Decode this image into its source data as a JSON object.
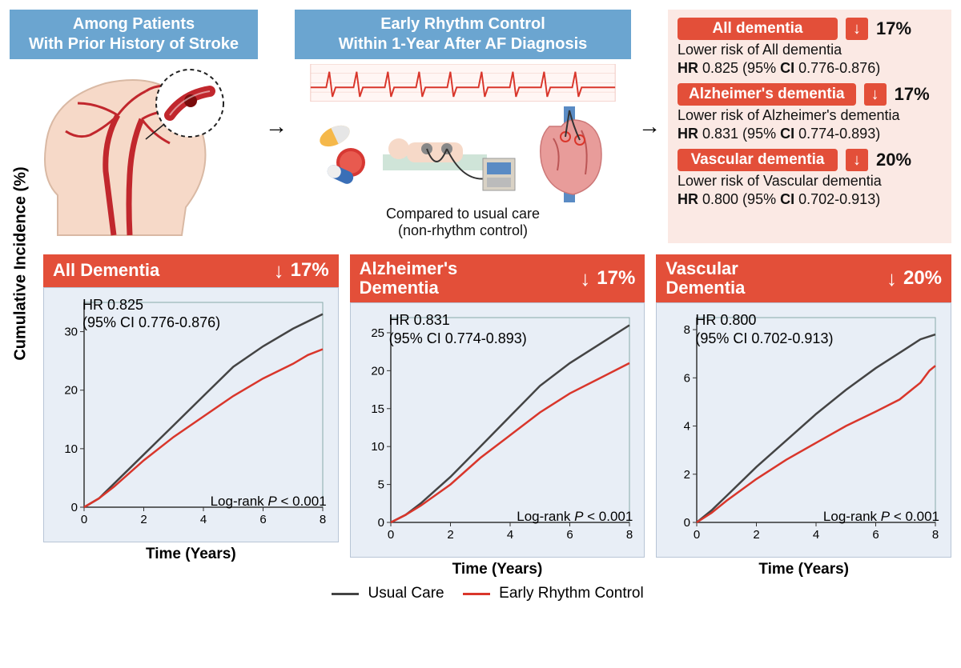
{
  "colors": {
    "blue_header": "#6ba5d0",
    "red": "#e34f39",
    "red_line": "#d9362b",
    "gray_line": "#444444",
    "chart_bg": "#e8eef6",
    "pink_bg": "#fbe9e4",
    "skin": "#f6d9c8",
    "heart": "#e89c9a"
  },
  "panel1": {
    "title_l1": "Among Patients",
    "title_l2": "With Prior History of Stroke"
  },
  "panel2": {
    "title_l1": "Early Rhythm Control",
    "title_l2": "Within 1-Year After AF Diagnosis",
    "caption_l1": "Compared to usual care",
    "caption_l2": "(non-rhythm control)"
  },
  "results": [
    {
      "label": "All dementia",
      "pct": "17%",
      "sub": "Lower risk of All dementia",
      "hr": "HR 0.825 (95% CI 0.776-0.876)",
      "hr_bold1": "HR",
      "hr_val": "0.825 (95%",
      "ci_bold": "CI",
      "ci_val": "0.776-0.876)"
    },
    {
      "label": "Alzheimer's dementia",
      "pct": "17%",
      "sub": "Lower risk of Alzheimer's dementia",
      "hr_bold1": "HR",
      "hr_val": "0.831 (95%",
      "ci_bold": "CI",
      "ci_val": "0.774-0.893)"
    },
    {
      "label": "Vascular dementia",
      "pct": "20%",
      "sub": "Lower risk of Vascular dementia",
      "hr_bold1": "HR",
      "hr_val": "0.800 (95%",
      "ci_bold": "CI",
      "ci_val": "0.702-0.913)"
    }
  ],
  "shared_ylabel": "Cumulative Incidence (%)",
  "shared_xlabel": "Time (Years)",
  "legend": {
    "usual": "Usual Care",
    "early": "Early Rhythm Control"
  },
  "charts": [
    {
      "title": "All Dementia",
      "pct": "17%",
      "hr_l1": "HR 0.825",
      "hr_l2": "(95% CI 0.776-0.876)",
      "logrank": "Log-rank P < 0.001",
      "ymax": 35,
      "yticks": [
        0,
        10,
        20,
        30
      ],
      "xmax": 8,
      "xticks": [
        0,
        2,
        4,
        6,
        8
      ],
      "usual": [
        [
          0,
          0
        ],
        [
          0.5,
          1.5
        ],
        [
          1,
          4
        ],
        [
          2,
          9
        ],
        [
          3,
          14
        ],
        [
          4,
          19
        ],
        [
          5,
          24
        ],
        [
          6,
          27.5
        ],
        [
          7,
          30.5
        ],
        [
          8,
          33
        ]
      ],
      "early": [
        [
          0,
          0
        ],
        [
          0.5,
          1.5
        ],
        [
          1,
          3.5
        ],
        [
          2,
          8
        ],
        [
          3,
          12
        ],
        [
          4,
          15.5
        ],
        [
          5,
          19
        ],
        [
          6,
          22
        ],
        [
          7,
          24.5
        ],
        [
          7.5,
          26
        ],
        [
          8,
          27
        ]
      ]
    },
    {
      "title": "Alzheimer's\nDementia",
      "pct": "17%",
      "hr_l1": "HR 0.831",
      "hr_l2": "(95% CI 0.774-0.893)",
      "logrank": "Log-rank P < 0.001",
      "ymax": 27,
      "yticks": [
        0,
        5,
        10,
        15,
        20,
        25
      ],
      "xmax": 8,
      "xticks": [
        0,
        2,
        4,
        6,
        8
      ],
      "usual": [
        [
          0,
          0
        ],
        [
          0.5,
          1
        ],
        [
          1,
          2.5
        ],
        [
          2,
          6
        ],
        [
          3,
          10
        ],
        [
          4,
          14
        ],
        [
          5,
          18
        ],
        [
          6,
          21
        ],
        [
          7,
          23.5
        ],
        [
          8,
          26
        ]
      ],
      "early": [
        [
          0,
          0
        ],
        [
          0.5,
          1
        ],
        [
          1,
          2.2
        ],
        [
          2,
          5
        ],
        [
          3,
          8.5
        ],
        [
          4,
          11.5
        ],
        [
          5,
          14.5
        ],
        [
          6,
          17
        ],
        [
          7,
          19
        ],
        [
          7.5,
          20
        ],
        [
          8,
          21
        ]
      ]
    },
    {
      "title": "Vascular\nDementia",
      "pct": "20%",
      "hr_l1": "HR 0.800",
      "hr_l2": "(95% CI 0.702-0.913)",
      "logrank": "Log-rank P < 0.001",
      "ymax": 8.5,
      "yticks": [
        0,
        2,
        4,
        6,
        8
      ],
      "xmax": 8,
      "xticks": [
        0,
        2,
        4,
        6,
        8
      ],
      "usual": [
        [
          0,
          0
        ],
        [
          0.5,
          0.5
        ],
        [
          1,
          1.1
        ],
        [
          2,
          2.3
        ],
        [
          3,
          3.4
        ],
        [
          4,
          4.5
        ],
        [
          5,
          5.5
        ],
        [
          6,
          6.4
        ],
        [
          7,
          7.2
        ],
        [
          7.5,
          7.6
        ],
        [
          8,
          7.8
        ]
      ],
      "early": [
        [
          0,
          0
        ],
        [
          0.5,
          0.4
        ],
        [
          1,
          0.9
        ],
        [
          2,
          1.8
        ],
        [
          3,
          2.6
        ],
        [
          4,
          3.3
        ],
        [
          5,
          4.0
        ],
        [
          6,
          4.6
        ],
        [
          6.8,
          5.1
        ],
        [
          7.5,
          5.8
        ],
        [
          7.8,
          6.3
        ],
        [
          8,
          6.5
        ]
      ]
    }
  ]
}
